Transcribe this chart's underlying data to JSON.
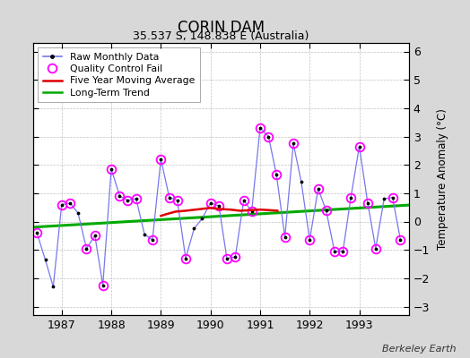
{
  "title": "CORIN DAM",
  "subtitle": "35.537 S, 148.838 E (Australia)",
  "ylabel": "Temperature Anomaly (°C)",
  "attribution": "Berkeley Earth",
  "ylim": [
    -3.3,
    6.3
  ],
  "xlim": [
    1986.42,
    1994.0
  ],
  "yticks": [
    -3,
    -2,
    -1,
    0,
    1,
    2,
    3,
    4,
    5,
    6
  ],
  "xticks": [
    1987,
    1988,
    1989,
    1990,
    1991,
    1992,
    1993
  ],
  "fig_bg_color": "#d8d8d8",
  "plot_bg_color": "#ffffff",
  "raw_color": "#7777ee",
  "qc_color": "#ff00ff",
  "moving_avg_color": "#dd0000",
  "trend_color": "#00aa00",
  "raw_monthly_x": [
    1986.5,
    1986.67,
    1986.83,
    1987.0,
    1987.17,
    1987.33,
    1987.5,
    1987.67,
    1987.83,
    1988.0,
    1988.17,
    1988.33,
    1988.5,
    1988.67,
    1988.83,
    1989.0,
    1989.17,
    1989.33,
    1989.5,
    1989.67,
    1989.83,
    1990.0,
    1990.17,
    1990.33,
    1990.5,
    1990.67,
    1990.83,
    1991.0,
    1991.17,
    1991.33,
    1991.5,
    1991.67,
    1991.83,
    1992.0,
    1992.17,
    1992.33,
    1992.5,
    1992.67,
    1992.83,
    1993.0,
    1993.17,
    1993.33,
    1993.5,
    1993.67,
    1993.83
  ],
  "raw_monthly_y": [
    -0.4,
    -1.35,
    -2.3,
    0.6,
    0.65,
    0.3,
    -0.95,
    -0.5,
    -2.25,
    1.85,
    0.9,
    0.75,
    0.8,
    -0.45,
    -0.65,
    2.2,
    0.85,
    0.75,
    -1.3,
    -0.25,
    0.1,
    0.65,
    0.55,
    -1.3,
    -1.25,
    0.75,
    0.35,
    3.3,
    3.0,
    1.65,
    -0.55,
    2.75,
    1.4,
    -0.65,
    1.15,
    0.4,
    -1.05,
    -1.05,
    0.85,
    2.65,
    0.65,
    -0.95,
    0.8,
    0.85,
    -0.65
  ],
  "qc_fail_x": [
    1986.5,
    1987.0,
    1987.17,
    1987.5,
    1987.67,
    1987.83,
    1988.0,
    1988.17,
    1988.33,
    1988.5,
    1988.83,
    1989.0,
    1989.17,
    1989.33,
    1989.5,
    1990.0,
    1990.17,
    1990.33,
    1990.5,
    1990.67,
    1990.83,
    1991.0,
    1991.17,
    1991.33,
    1991.5,
    1991.67,
    1992.0,
    1992.17,
    1992.33,
    1992.5,
    1992.67,
    1992.83,
    1993.0,
    1993.17,
    1993.33,
    1993.67,
    1993.83
  ],
  "qc_fail_y": [
    -0.4,
    0.6,
    0.65,
    -0.95,
    -0.5,
    -2.25,
    1.85,
    0.9,
    0.75,
    0.8,
    -0.65,
    2.2,
    0.85,
    0.75,
    -1.3,
    0.65,
    0.55,
    -1.3,
    -1.25,
    0.75,
    0.35,
    3.3,
    3.0,
    1.65,
    -0.55,
    2.75,
    -0.65,
    1.15,
    0.4,
    -1.05,
    -1.05,
    0.85,
    2.65,
    0.65,
    -0.95,
    0.85,
    -0.65
  ],
  "moving_avg_x": [
    1989.0,
    1989.15,
    1989.3,
    1989.5,
    1989.7,
    1989.85,
    1990.0,
    1990.2,
    1990.4,
    1990.6,
    1990.8,
    1991.0,
    1991.2,
    1991.35
  ],
  "moving_avg_y": [
    0.2,
    0.28,
    0.35,
    0.38,
    0.42,
    0.45,
    0.48,
    0.44,
    0.42,
    0.38,
    0.4,
    0.42,
    0.4,
    0.38
  ],
  "trend_x": [
    1986.42,
    1994.0
  ],
  "trend_y": [
    -0.2,
    0.58
  ]
}
